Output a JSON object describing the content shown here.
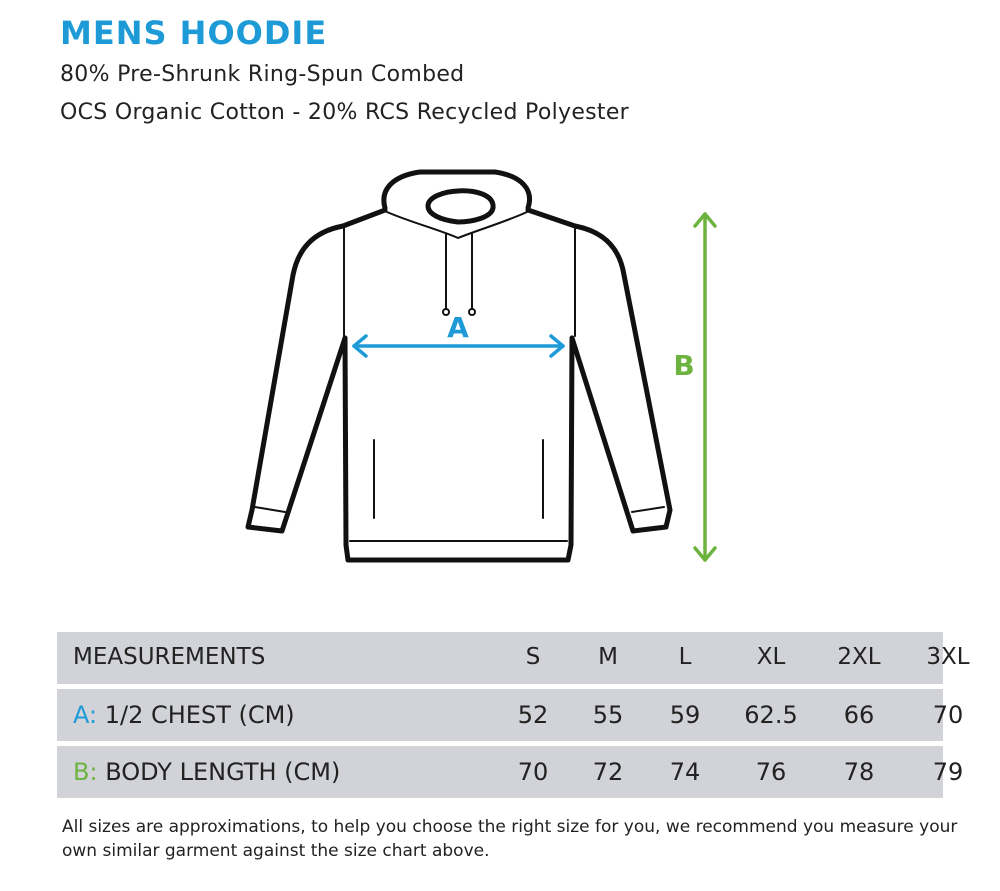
{
  "header": {
    "title": "MENS HOODIE",
    "subtitle_line1": "80% Pre-Shrunk Ring-Spun Combed",
    "subtitle_line2": "OCS Organic Cotton - 20% RCS Recycled Polyester"
  },
  "diagram": {
    "label_a": "A",
    "label_b": "B",
    "color_a": "#1e9bd7",
    "color_b": "#6db33f"
  },
  "table": {
    "header": {
      "label": "MEASUREMENTS",
      "sizes": [
        "S",
        "M",
        "L",
        "XL",
        "2XL",
        "3XL"
      ]
    },
    "rows": [
      {
        "letter": "A:",
        "label": "1/2 CHEST (CM)",
        "values": [
          "52",
          "55",
          "59",
          "62.5",
          "66",
          "70"
        ]
      },
      {
        "letter": "B:",
        "label": "BODY LENGTH (CM)",
        "values": [
          "70",
          "72",
          "74",
          "76",
          "78",
          "79"
        ]
      }
    ]
  },
  "footnote": "All sizes are approximations, to help you choose the right size for you, we recommend you measure your own similar garment against the size chart above."
}
